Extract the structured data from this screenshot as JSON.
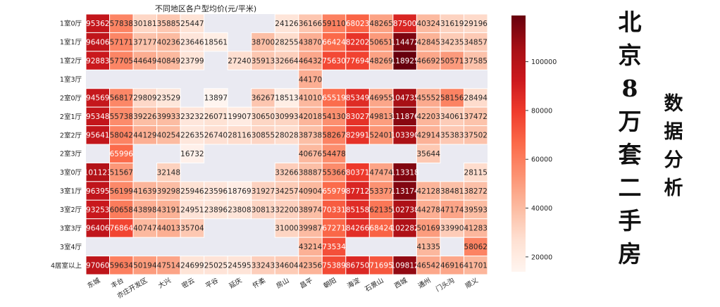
{
  "chart_data": {
    "type": "heatmap",
    "title": "不同地区各户型均价(元/平米)",
    "rows": [
      "1室0厅",
      "1室1厅",
      "1室2厅",
      "1室3厅",
      "2室0厅",
      "2室1厅",
      "2室2厅",
      "2室3厅",
      "3室0厅",
      "3室1厅",
      "3室2厅",
      "3室3厅",
      "3室4厅",
      "4居室以上"
    ],
    "columns": [
      "东城",
      "丰台",
      "亦庄开发区",
      "大兴",
      "密云",
      "平谷",
      "延庆",
      "怀柔",
      "房山",
      "昌平",
      "朝阳",
      "海淀",
      "石景山",
      "西城",
      "通州",
      "门头沟",
      "顺义"
    ],
    "values": [
      [
        95362,
        57838,
        30181,
        35885,
        25447,
        null,
        null,
        null,
        24126,
        36166,
        59110,
        68023,
        48265,
        87500,
        40324,
        31619,
        29196
      ],
      [
        96406,
        57171,
        37177,
        40236,
        23646,
        18561,
        null,
        38700,
        28255,
        43870,
        66424,
        82202,
        50651,
        114472,
        42845,
        34235,
        34857
      ],
      [
        92883,
        57705,
        44649,
        40849,
        23799,
        null,
        27240,
        35913,
        32664,
        46432,
        75630,
        77694,
        48269,
        118925,
        46692,
        50571,
        37585
      ],
      [
        null,
        null,
        null,
        null,
        null,
        null,
        null,
        null,
        null,
        44170,
        null,
        null,
        null,
        null,
        null,
        null,
        null
      ],
      [
        94569,
        56817,
        29809,
        23529,
        null,
        13897,
        null,
        36267,
        18513,
        41010,
        65519,
        85349,
        46955,
        104735,
        45552,
        58156,
        28494
      ],
      [
        95348,
        55738,
        39226,
        39933,
        23232,
        26071,
        19907,
        30650,
        30993,
        42018,
        54130,
        83027,
        49813,
        111876,
        42203,
        34061,
        37472
      ],
      [
        95641,
        58042,
        44129,
        40254,
        22635,
        26740,
        28116,
        30855,
        28028,
        38738,
        58267,
        82991,
        52401,
        103390,
        42914,
        35383,
        37502
      ],
      [
        null,
        65996,
        null,
        null,
        16732,
        null,
        null,
        null,
        null,
        40676,
        54478,
        null,
        null,
        null,
        35644,
        null,
        null
      ],
      [
        101123,
        51567,
        null,
        32148,
        null,
        null,
        null,
        null,
        33266,
        38887,
        55366,
        80371,
        47474,
        113318,
        null,
        null,
        28115
      ],
      [
        96395,
        56199,
        41639,
        39298,
        25946,
        23596,
        18769,
        31927,
        34257,
        40904,
        65979,
        87712,
        53377,
        113174,
        42128,
        38481,
        38272
      ],
      [
        93253,
        60658,
        43898,
        43191,
        24951,
        23896,
        23808,
        30813,
        32200,
        38974,
        70331,
        85158,
        62135,
        102738,
        44278,
        47174,
        39593
      ],
      [
        96406,
        76864,
        40747,
        44013,
        35704,
        null,
        null,
        null,
        31000,
        39987,
        67271,
        84266,
        68424,
        102282,
        50169,
        33990,
        41283
      ],
      [
        null,
        null,
        null,
        null,
        null,
        null,
        null,
        null,
        null,
        43214,
        73534,
        null,
        null,
        null,
        41335,
        null,
        58062
      ],
      [
        97060,
        59634,
        50194,
        47514,
        24699,
        25025,
        24595,
        33243,
        34604,
        42356,
        75389,
        86750,
        71695,
        109812,
        46542,
        46916,
        41701
      ]
    ],
    "colorbar_ticks": [
      20000,
      40000,
      60000,
      80000,
      100000
    ],
    "color_range": [
      13897,
      118925
    ],
    "colormap": "Reds",
    "missing_color": "#eaeaf2",
    "grid": false,
    "legend": "right colorbar"
  },
  "side_title": {
    "main": [
      "北",
      "京",
      "8",
      "万",
      "套",
      "二",
      "手",
      "房"
    ],
    "sub": [
      "数",
      "据",
      "分",
      "析"
    ]
  }
}
